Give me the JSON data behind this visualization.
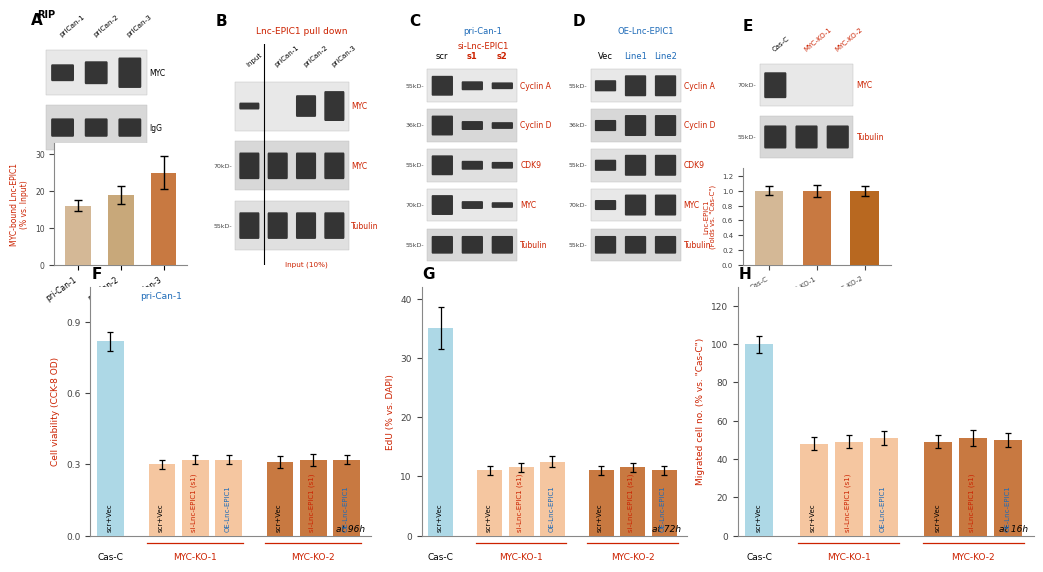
{
  "panel_A": {
    "bar_values": [
      16,
      19,
      25
    ],
    "bar_errors": [
      1.5,
      2.5,
      4.5
    ],
    "bar_colors": [
      "#d4b896",
      "#c8a87a",
      "#c87941"
    ],
    "categories": [
      "pri-Can-1",
      "pri-Can-2",
      "pri-Can-3"
    ],
    "ylabel": "MYC-bound Lnc-EPIC1\n(% vs. Input)",
    "ylim": [
      0,
      33
    ],
    "yticks": [
      0,
      10,
      20,
      30
    ]
  },
  "panel_E_bar": {
    "bar_values": [
      1.0,
      1.0,
      1.0
    ],
    "bar_errors": [
      0.06,
      0.08,
      0.07
    ],
    "bar_colors": [
      "#d4b896",
      "#c87941",
      "#b86820"
    ],
    "categories": [
      "Cas-C",
      "MYC-KO-1",
      "MYC-KO-2"
    ],
    "ylabel": "Lnc-EPIC1\n(Folds vs. \"Cas-C\")",
    "ylim": [
      0,
      1.3
    ],
    "yticks": [
      0.0,
      0.2,
      0.4,
      0.6,
      0.8,
      1.0,
      1.2
    ]
  },
  "panel_F": {
    "bar_values": [
      0.82,
      0.3,
      0.32,
      0.32,
      0.31,
      0.32,
      0.32
    ],
    "bar_errors": [
      0.04,
      0.02,
      0.02,
      0.02,
      0.025,
      0.025,
      0.02
    ],
    "bar_colors": [
      "#add8e6",
      "#f5c6a0",
      "#f5c6a0",
      "#f5c6a0",
      "#c87941",
      "#c87941",
      "#c87941"
    ],
    "ylabel": "Cell viability (CCK-8 OD)",
    "ylim": [
      0,
      1.05
    ],
    "yticks": [
      0,
      0.3,
      0.6,
      0.9
    ],
    "subtitle": "pri-Can-1",
    "time_label": "at 96h"
  },
  "panel_G": {
    "bar_values": [
      35,
      11,
      11.5,
      12.5,
      11,
      11.5,
      11
    ],
    "bar_errors": [
      3.5,
      0.8,
      0.8,
      0.9,
      0.7,
      0.7,
      0.7
    ],
    "bar_colors": [
      "#add8e6",
      "#f5c6a0",
      "#f5c6a0",
      "#f5c6a0",
      "#c87941",
      "#c87941",
      "#c87941"
    ],
    "ylabel": "EdU (% vs. DAPI)",
    "ylim": [
      0,
      42
    ],
    "yticks": [
      0,
      10,
      20,
      30,
      40
    ],
    "time_label": "at 72h"
  },
  "panel_H": {
    "bar_values": [
      100,
      48,
      49,
      51,
      49,
      51,
      50
    ],
    "bar_errors": [
      4.5,
      3.5,
      3.5,
      3.5,
      3.5,
      4.0,
      3.5
    ],
    "bar_colors": [
      "#add8e6",
      "#f5c6a0",
      "#f5c6a0",
      "#f5c6a0",
      "#c87941",
      "#c87941",
      "#c87941"
    ],
    "ylabel": "Migrated cell no. (% vs. \"Cas-C\")",
    "ylim": [
      0,
      130
    ],
    "yticks": [
      0,
      20,
      40,
      60,
      80,
      100,
      120
    ],
    "time_label": "at 16h"
  },
  "colors": {
    "blue_label": "#1e6bb8",
    "red_label": "#cc2200",
    "black": "#000000",
    "wb_bg1": "#e8e8e8",
    "wb_bg2": "#d8d8d8",
    "wb_band_dark": "#1a1a1a",
    "wb_band_med": "#555555",
    "axis_color": "#888888"
  },
  "wb_A": {
    "lane_labels": [
      "priCan-1",
      "priCan-2",
      "priCan-3"
    ],
    "rows": [
      {
        "label": "MYC",
        "intensities": [
          0.45,
          0.65,
          0.9
        ],
        "kd": ""
      },
      {
        "label": "IgG",
        "intensities": [
          0.5,
          0.5,
          0.5
        ],
        "kd": ""
      }
    ]
  },
  "wb_B": {
    "lane_labels": [
      "Input",
      "priCan-1",
      "priCan-2",
      "priCan-3"
    ],
    "rows": [
      {
        "label": "MYC",
        "intensities": [
          0.1,
          0.0,
          0.55,
          0.8
        ],
        "kd": ""
      },
      {
        "label": "MYC",
        "intensities": [
          0.7,
          0.7,
          0.7,
          0.7
        ],
        "kd": "70kD-"
      },
      {
        "label": "Tubulin",
        "intensities": [
          0.7,
          0.7,
          0.7,
          0.7
        ],
        "kd": "55kD-"
      }
    ]
  },
  "wb_C": {
    "lane_labels": [
      "scr",
      "s1",
      "s2"
    ],
    "lane_colors": [
      "black",
      "red",
      "red"
    ],
    "rows": [
      {
        "label": "Cyclin A",
        "intensities": [
          0.8,
          0.3,
          0.2
        ],
        "kd": "55kD-"
      },
      {
        "label": "Cyclin D",
        "intensities": [
          0.8,
          0.3,
          0.2
        ],
        "kd": "36kD-"
      },
      {
        "label": "CDK9",
        "intensities": [
          0.8,
          0.3,
          0.2
        ],
        "kd": "55kD-"
      },
      {
        "label": "MYC",
        "intensities": [
          0.8,
          0.25,
          0.15
        ],
        "kd": "70kD-"
      },
      {
        "label": "Tubulin",
        "intensities": [
          0.7,
          0.7,
          0.7
        ],
        "kd": "55kD-"
      }
    ]
  },
  "wb_D": {
    "lane_labels": [
      "Vec",
      "Line1",
      "Line2"
    ],
    "lane_colors": [
      "black",
      "blue",
      "blue"
    ],
    "rows": [
      {
        "label": "Cyclin A",
        "intensities": [
          0.4,
          0.85,
          0.85
        ],
        "kd": "55kD-"
      },
      {
        "label": "Cyclin D",
        "intensities": [
          0.4,
          0.85,
          0.85
        ],
        "kd": "36kD-"
      },
      {
        "label": "CDK9",
        "intensities": [
          0.4,
          0.85,
          0.85
        ],
        "kd": "55kD-"
      },
      {
        "label": "MYC",
        "intensities": [
          0.35,
          0.85,
          0.85
        ],
        "kd": "70kD-"
      },
      {
        "label": "Tubulin",
        "intensities": [
          0.7,
          0.7,
          0.7
        ],
        "kd": "55kD-"
      }
    ]
  },
  "wb_E": {
    "lane_labels": [
      "Cas-C",
      "MYC-KO-1",
      "MYC-KO-2"
    ],
    "lane_colors": [
      "black",
      "red",
      "red"
    ],
    "rows": [
      {
        "label": "MYC",
        "intensities": [
          0.8,
          0.0,
          0.0
        ],
        "kd": "70kD-"
      },
      {
        "label": "Tubulin",
        "intensities": [
          0.7,
          0.7,
          0.7
        ],
        "kd": "55kD-"
      }
    ]
  }
}
